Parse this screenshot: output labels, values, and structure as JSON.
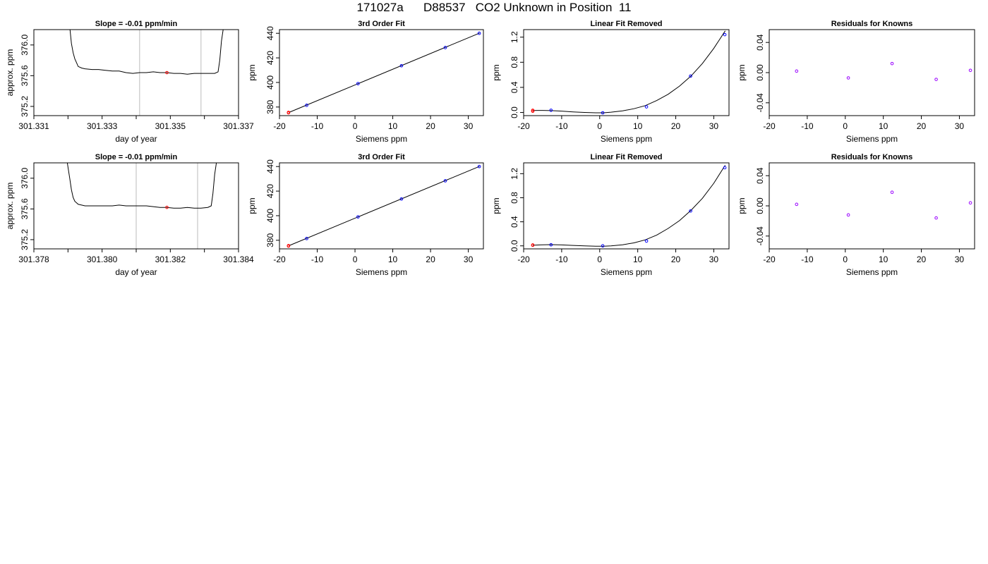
{
  "page_title": "171027a      D88537   CO2 Unknown in Position  11",
  "colors": {
    "line": "#000000",
    "known": "#0000ff",
    "unknown": "#ff0000",
    "residual": "#9900ff",
    "gridline": "#bbbbbb"
  },
  "chart_data": [
    {
      "id": "r1-trace",
      "type": "line",
      "title": "Slope =  -0.01  ppm/min",
      "xlabel": "day of year",
      "ylabel": "approx. ppm",
      "xlim": [
        301.331,
        301.337
      ],
      "ylim": [
        375.08,
        376.2
      ],
      "xticks": [
        301.331,
        301.333,
        301.335,
        301.337
      ],
      "xticklabels": [
        "301.331",
        "301.333",
        "301.335",
        "301.337"
      ],
      "minor_xticks": [
        301.332,
        301.334,
        301.336
      ],
      "yticks": [
        375.2,
        375.6,
        376.0
      ],
      "yticklabels": [
        "375.2",
        "375.6",
        "376.0"
      ],
      "vlines": [
        301.3341,
        301.3359
      ],
      "x": [
        301.33206,
        301.3321,
        301.33215,
        301.3322,
        301.33225,
        301.3323,
        301.3324,
        301.3325,
        301.3327,
        301.3329,
        301.3331,
        301.3333,
        301.3335,
        301.3337,
        301.3339,
        301.3341,
        301.3343,
        301.3345,
        301.3347,
        301.3349,
        301.3351,
        301.3353,
        301.3355,
        301.3357,
        301.3359,
        301.3361,
        301.3363,
        301.3364,
        301.33645,
        301.3365,
        301.33655
      ],
      "y": [
        376.2,
        376.02,
        375.9,
        375.82,
        375.77,
        375.72,
        375.7,
        375.69,
        375.68,
        375.68,
        375.67,
        375.66,
        375.66,
        375.64,
        375.63,
        375.64,
        375.64,
        375.65,
        375.64,
        375.64,
        375.63,
        375.63,
        375.62,
        375.63,
        375.63,
        375.63,
        375.63,
        375.65,
        375.8,
        376.05,
        376.2
      ],
      "marker": {
        "x": 301.3349,
        "y": 375.64
      }
    },
    {
      "id": "r1-fit",
      "type": "scatter",
      "title": "3rd Order Fit",
      "xlabel": "Siemens ppm",
      "ylabel": "ppm",
      "xlim": [
        -20,
        34
      ],
      "ylim": [
        373,
        443
      ],
      "xticks": [
        -20,
        -10,
        0,
        10,
        20,
        30
      ],
      "xticklabels": [
        "-20",
        "-10",
        "0",
        "10",
        "20",
        "30"
      ],
      "yticks": [
        380,
        400,
        420,
        440
      ],
      "yticklabels": [
        "380",
        "400",
        "420",
        "440"
      ],
      "line": {
        "x": [
          -17.5,
          33
        ],
        "y": [
          375.6,
          440.2
        ]
      },
      "knowns": {
        "x": [
          -12.8,
          0.8,
          12.3,
          23.9,
          32.9
        ],
        "y": [
          381.4,
          399.0,
          413.6,
          428.4,
          440.0
        ]
      },
      "unknown": {
        "x": [
          -17.6,
          -17.6
        ],
        "y": [
          375.64,
          375.3
        ]
      }
    },
    {
      "id": "r1-linear",
      "type": "scatter",
      "title": "Linear Fit Removed",
      "xlabel": "Siemens ppm",
      "ylabel": "ppm",
      "xlim": [
        -20,
        34
      ],
      "ylim": [
        -0.05,
        1.32
      ],
      "xticks": [
        -20,
        -10,
        0,
        10,
        20,
        30
      ],
      "xticklabels": [
        "-20",
        "-10",
        "0",
        "10",
        "20",
        "30"
      ],
      "yticks": [
        0.0,
        0.4,
        0.8,
        1.2
      ],
      "yticklabels": [
        "0.0",
        "0.4",
        "0.8",
        "1.2"
      ],
      "curve": {
        "x": [
          -17.6,
          -15,
          -12.8,
          -10,
          -7,
          -4,
          -1,
          1,
          3,
          6,
          9,
          12,
          15,
          18,
          21,
          24,
          27,
          30,
          33
        ],
        "y": [
          0.032,
          0.033,
          0.03,
          0.022,
          0.01,
          0.0,
          -0.005,
          -0.005,
          0.005,
          0.025,
          0.06,
          0.11,
          0.19,
          0.29,
          0.42,
          0.58,
          0.78,
          1.02,
          1.3
        ]
      },
      "knowns": {
        "x": [
          -12.8,
          0.8,
          12.3,
          23.9,
          32.9
        ],
        "y": [
          0.035,
          -0.005,
          0.09,
          0.58,
          1.24
        ]
      },
      "unknown": {
        "x": [
          -17.6,
          -17.6
        ],
        "y": [
          0.035,
          0.02
        ]
      }
    },
    {
      "id": "r1-resid",
      "type": "scatter",
      "title": "Residuals for Knowns",
      "xlabel": "Siemens ppm",
      "ylabel": "ppm",
      "xlim": [
        -20,
        34
      ],
      "ylim": [
        -0.057,
        0.057
      ],
      "xticks": [
        -20,
        -10,
        0,
        10,
        20,
        30
      ],
      "xticklabels": [
        "-20",
        "-10",
        "0",
        "10",
        "20",
        "30"
      ],
      "yticks": [
        -0.04,
        0.0,
        0.04
      ],
      "yticklabels": [
        "-0.04",
        "0.00",
        "0.04"
      ],
      "residuals": {
        "x": [
          -12.8,
          0.8,
          12.3,
          23.9,
          32.9
        ],
        "y": [
          0.002,
          -0.007,
          0.012,
          -0.009,
          0.003
        ]
      }
    },
    {
      "id": "r2-trace",
      "type": "line",
      "title": "Slope =  -0.01  ppm/min",
      "xlabel": "day of year",
      "ylabel": "approx. ppm",
      "xlim": [
        301.378,
        301.384
      ],
      "ylim": [
        375.08,
        376.2
      ],
      "xticks": [
        301.378,
        301.38,
        301.382,
        301.384
      ],
      "xticklabels": [
        "301.378",
        "301.380",
        "301.382",
        "301.384"
      ],
      "minor_xticks": [
        301.379,
        301.381,
        301.383
      ],
      "yticks": [
        375.2,
        375.6,
        376.0
      ],
      "yticklabels": [
        "375.2",
        "375.6",
        "376.0"
      ],
      "vlines": [
        301.381,
        301.3828
      ],
      "x": [
        301.37898,
        301.37905,
        301.3791,
        301.37915,
        301.3792,
        301.3793,
        301.3795,
        301.3797,
        301.3799,
        301.3801,
        301.3803,
        301.3805,
        301.3807,
        301.3809,
        301.3811,
        301.3813,
        301.3815,
        301.3817,
        301.3819,
        301.3821,
        301.3823,
        301.3825,
        301.3827,
        301.3829,
        301.3831,
        301.3832,
        301.38325,
        301.3833,
        301.38335
      ],
      "y": [
        376.2,
        376.0,
        375.85,
        375.75,
        375.7,
        375.66,
        375.64,
        375.64,
        375.64,
        375.64,
        375.64,
        375.65,
        375.64,
        375.64,
        375.64,
        375.64,
        375.63,
        375.62,
        375.62,
        375.61,
        375.61,
        375.62,
        375.61,
        375.61,
        375.62,
        375.64,
        375.8,
        376.05,
        376.2
      ],
      "marker": {
        "x": 301.3819,
        "y": 375.62
      }
    },
    {
      "id": "r2-fit",
      "type": "scatter",
      "title": "3rd Order Fit",
      "xlabel": "Siemens ppm",
      "ylabel": "ppm",
      "xlim": [
        -20,
        34
      ],
      "ylim": [
        373,
        443
      ],
      "xticks": [
        -20,
        -10,
        0,
        10,
        20,
        30
      ],
      "xticklabels": [
        "-20",
        "-10",
        "0",
        "10",
        "20",
        "30"
      ],
      "yticks": [
        380,
        400,
        420,
        440
      ],
      "yticklabels": [
        "380",
        "400",
        "420",
        "440"
      ],
      "line": {
        "x": [
          -17.5,
          33
        ],
        "y": [
          375.6,
          440.2
        ]
      },
      "knowns": {
        "x": [
          -12.8,
          0.8,
          12.3,
          23.9,
          32.9
        ],
        "y": [
          381.4,
          399.0,
          413.6,
          428.4,
          440.0
        ]
      },
      "unknown": {
        "x": [
          -17.6,
          -17.6
        ],
        "y": [
          375.62,
          375.3
        ]
      }
    },
    {
      "id": "r2-linear",
      "type": "scatter",
      "title": "Linear Fit Removed",
      "xlabel": "Siemens ppm",
      "ylabel": "ppm",
      "xlim": [
        -20,
        34
      ],
      "ylim": [
        -0.05,
        1.38
      ],
      "xticks": [
        -20,
        -10,
        0,
        10,
        20,
        30
      ],
      "xticklabels": [
        "-20",
        "-10",
        "0",
        "10",
        "20",
        "30"
      ],
      "yticks": [
        0.0,
        0.4,
        0.8,
        1.2
      ],
      "yticklabels": [
        "0.0",
        "0.4",
        "0.8",
        "1.2"
      ],
      "curve": {
        "x": [
          -17.6,
          -15,
          -12.8,
          -10,
          -7,
          -4,
          -1,
          1,
          3,
          6,
          9,
          12,
          15,
          18,
          21,
          24,
          27,
          30,
          33
        ],
        "y": [
          0.01,
          0.018,
          0.02,
          0.016,
          0.008,
          0.0,
          -0.005,
          -0.006,
          0.0,
          0.018,
          0.05,
          0.1,
          0.18,
          0.29,
          0.42,
          0.59,
          0.79,
          1.04,
          1.34
        ]
      },
      "knowns": {
        "x": [
          -12.8,
          0.8,
          12.3,
          23.9,
          32.9
        ],
        "y": [
          0.018,
          0.0,
          0.08,
          0.58,
          1.3
        ]
      },
      "unknown": {
        "x": [
          -17.6,
          -17.6
        ],
        "y": [
          0.015,
          0.01
        ]
      }
    },
    {
      "id": "r2-resid",
      "type": "scatter",
      "title": "Residuals for Knowns",
      "xlabel": "Siemens ppm",
      "ylabel": "ppm",
      "xlim": [
        -20,
        34
      ],
      "ylim": [
        -0.057,
        0.057
      ],
      "xticks": [
        -20,
        -10,
        0,
        10,
        20,
        30
      ],
      "xticklabels": [
        "-20",
        "-10",
        "0",
        "10",
        "20",
        "30"
      ],
      "yticks": [
        -0.04,
        0.0,
        0.04
      ],
      "yticklabels": [
        "-0.04",
        "0.00",
        "0.04"
      ],
      "residuals": {
        "x": [
          -12.8,
          0.8,
          12.3,
          23.9,
          32.9
        ],
        "y": [
          0.002,
          -0.012,
          0.018,
          -0.016,
          0.004
        ]
      }
    }
  ]
}
